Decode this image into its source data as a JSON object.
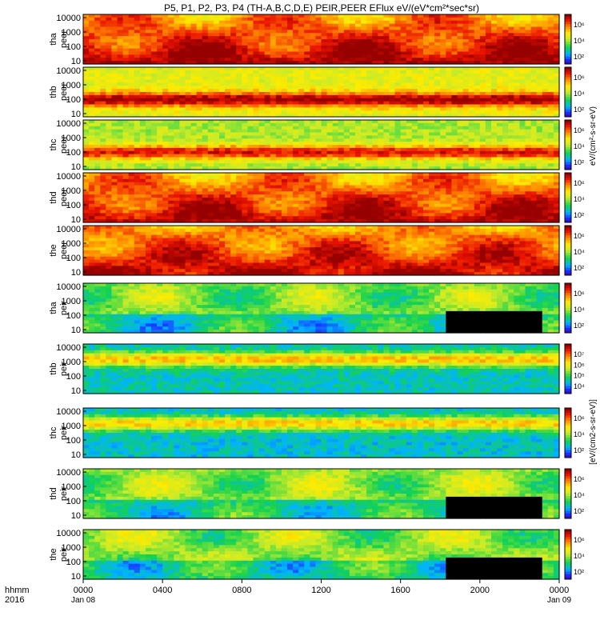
{
  "chart_data": {
    "type": "heatmap",
    "title": "P5, P1, P2, P3, P4 (TH-A,B,C,D,E) PEIR,PEER EFlux eV/(eV*cm²*sec*sr)",
    "x_label_row1": "hhmm",
    "x_label_row2": "2016",
    "x_ticks": [
      {
        "t": 0,
        "label": "0000",
        "sub": "Jan 08"
      },
      {
        "t": 4,
        "label": "0400",
        "sub": ""
      },
      {
        "t": 8,
        "label": "0800",
        "sub": ""
      },
      {
        "t": 12,
        "label": "1200",
        "sub": ""
      },
      {
        "t": 16,
        "label": "1600",
        "sub": ""
      },
      {
        "t": 20,
        "label": "2000",
        "sub": ""
      },
      {
        "t": 24,
        "label": "0000",
        "sub": "Jan 09"
      }
    ],
    "x_range_hours": [
      0,
      24
    ],
    "y_ticks": [
      "10000",
      "1000",
      "100",
      "10"
    ],
    "y_unit": "eV",
    "colorbar_ticks_ion": [
      "10⁶",
      "10⁴",
      "10²"
    ],
    "colorbar_ticks_th_b": [
      "10⁷",
      "10⁶",
      "10⁵",
      "10⁴"
    ],
    "colorbar_label_electron": "eV/(cm²-s-sr-eV)",
    "colorbar_label_ion": "[eV/(cm2-s-sr-eV)]",
    "colors": {
      "black": "#000000",
      "red": "#e60000",
      "orange": "#ff8c00",
      "yellow": "#ffff00",
      "green": "#22c83c",
      "cyan": "#00c8ff",
      "blue": "#1e3cff",
      "purple": "#7000a0"
    },
    "panels": [
      {
        "probe": "tha",
        "product": "peer",
        "base": 0.88
      },
      {
        "probe": "thb",
        "product": "peer",
        "base": 0.58
      },
      {
        "probe": "thc",
        "product": "peer",
        "base": 0.5
      },
      {
        "probe": "thd",
        "product": "peer",
        "base": 0.86
      },
      {
        "probe": "the",
        "product": "peer",
        "base": 0.86
      },
      {
        "probe": "tha",
        "product": "peir",
        "base": 0.4
      },
      {
        "probe": "thb",
        "product": "peir",
        "base": 0.28
      },
      {
        "probe": "thc",
        "product": "peir",
        "base": 0.26
      },
      {
        "probe": "thd",
        "product": "peir",
        "base": 0.42
      },
      {
        "probe": "the",
        "product": "peir",
        "base": 0.42
      }
    ]
  }
}
